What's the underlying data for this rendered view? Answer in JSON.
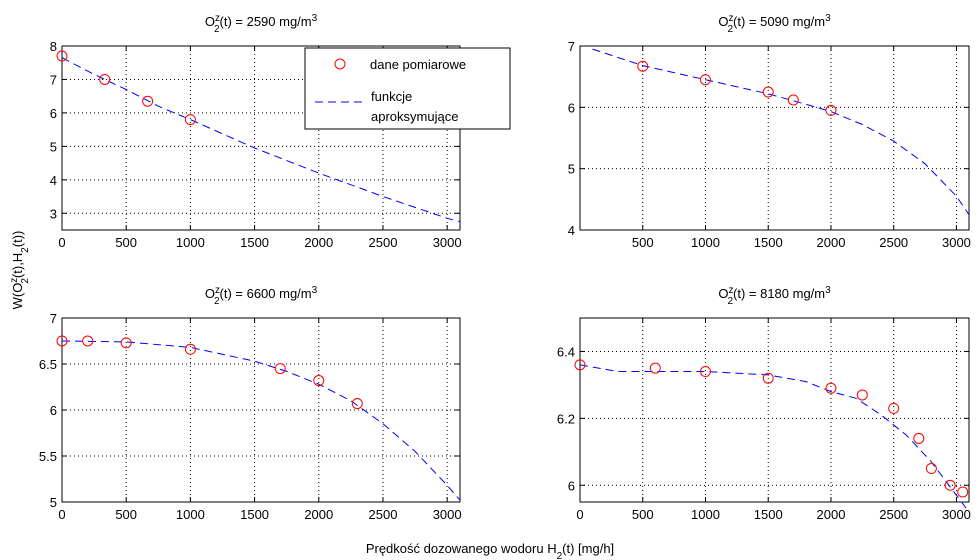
{
  "figure": {
    "ylabel": "W(O2z(t),H2(t))",
    "xlabel": "Prędkość dozowanego wodoru H2(t) [mg/h]"
  },
  "legend": {
    "items": [
      {
        "label": "dane pomiarowe",
        "kind": "marker"
      },
      {
        "label_line1": "funkcje",
        "label_line2": "aproksymujące",
        "kind": "line"
      }
    ]
  },
  "chart_data": [
    {
      "type": "line",
      "title": "O2z(t) = 2590 mg/m3",
      "title_parts": {
        "o2z": "O",
        "sub": "2",
        "sup": "z",
        "rest": "(t) = 2590 mg/m",
        "unit_sup": "3"
      },
      "xlim": [
        0,
        3100
      ],
      "ylim": [
        2.5,
        8
      ],
      "xticks": [
        0,
        500,
        1000,
        1500,
        2000,
        2500,
        3000
      ],
      "yticks": [
        3,
        4,
        5,
        6,
        7,
        8
      ],
      "grid": true,
      "series": [
        {
          "name": "dane pomiarowe",
          "x": [
            0,
            333,
            667,
            1000
          ],
          "y": [
            7.7,
            7.0,
            6.35,
            5.8
          ]
        },
        {
          "name": "funkcje aproksymujące",
          "x": [
            0,
            250,
            500,
            750,
            1000,
            1500,
            2000,
            2500,
            3000,
            3100
          ],
          "y": [
            7.65,
            7.15,
            6.7,
            6.2,
            5.8,
            4.95,
            4.2,
            3.5,
            2.85,
            2.75
          ]
        }
      ]
    },
    {
      "type": "line",
      "title": "O2z(t) = 5090 mg/m3",
      "title_parts": {
        "o2z": "O",
        "sub": "2",
        "sup": "z",
        "rest": "(t) = 5090 mg/m",
        "unit_sup": "3"
      },
      "xlim": [
        0,
        3100
      ],
      "ylim": [
        4,
        7
      ],
      "xticks": [
        500,
        1000,
        1500,
        2000,
        2500,
        3000
      ],
      "yticks": [
        4,
        5,
        6,
        7
      ],
      "grid": true,
      "series": [
        {
          "name": "dane pomiarowe",
          "x": [
            500,
            1000,
            1500,
            1700,
            2000
          ],
          "y": [
            6.67,
            6.45,
            6.25,
            6.12,
            5.95
          ]
        },
        {
          "name": "funkcje aproksymujące",
          "x": [
            100,
            500,
            1000,
            1500,
            1800,
            2000,
            2250,
            2500,
            2750,
            3000,
            3100
          ],
          "y": [
            6.95,
            6.68,
            6.45,
            6.22,
            6.05,
            5.93,
            5.72,
            5.45,
            5.08,
            4.55,
            4.25
          ]
        }
      ]
    },
    {
      "type": "line",
      "title": "O2z(t) = 6600 mg/m3",
      "title_parts": {
        "o2z": "O",
        "sub": "2",
        "sup": "z",
        "rest": "(t) = 6600 mg/m",
        "unit_sup": "3"
      },
      "xlim": [
        0,
        3100
      ],
      "ylim": [
        5,
        7
      ],
      "xticks": [
        0,
        500,
        1000,
        1500,
        2000,
        2500,
        3000
      ],
      "yticks": [
        5,
        5.5,
        6,
        6.5,
        7
      ],
      "grid": true,
      "series": [
        {
          "name": "dane pomiarowe",
          "x": [
            0,
            200,
            500,
            1000,
            1700,
            2000,
            2300
          ],
          "y": [
            6.75,
            6.75,
            6.73,
            6.66,
            6.45,
            6.32,
            6.07
          ]
        },
        {
          "name": "funkcje aproksymujące",
          "x": [
            0,
            500,
            1000,
            1500,
            1750,
            2000,
            2250,
            2500,
            2750,
            3000,
            3100
          ],
          "y": [
            6.75,
            6.74,
            6.68,
            6.53,
            6.42,
            6.28,
            6.1,
            5.85,
            5.55,
            5.18,
            5.02
          ]
        }
      ]
    },
    {
      "type": "line",
      "title": "O2z(t) = 8180 mg/m3",
      "title_parts": {
        "o2z": "O",
        "sub": "2",
        "sup": "z",
        "rest": "(t) = 8180 mg/m",
        "unit_sup": "3"
      },
      "xlim": [
        0,
        3100
      ],
      "ylim": [
        5.95,
        6.5
      ],
      "xticks": [
        0,
        500,
        1000,
        1500,
        2000,
        2500,
        3000
      ],
      "yticks": [
        6,
        6.2,
        6.4
      ],
      "ytick_labels": [
        "6",
        "6.2",
        "6.4"
      ],
      "grid": true,
      "series": [
        {
          "name": "dane pomiarowe",
          "x": [
            0,
            600,
            1000,
            1500,
            2000,
            2250,
            2500,
            2700,
            2800,
            2950,
            3050
          ],
          "y": [
            6.36,
            6.35,
            6.34,
            6.32,
            6.29,
            6.27,
            6.23,
            6.14,
            6.05,
            6.0,
            5.98
          ]
        },
        {
          "name": "funkcje aproksymujące",
          "x": [
            0,
            300,
            600,
            1000,
            1500,
            1800,
            2000,
            2200,
            2400,
            2600,
            2800,
            3000,
            3100
          ],
          "y": [
            6.36,
            6.34,
            6.34,
            6.34,
            6.33,
            6.31,
            6.28,
            6.26,
            6.21,
            6.15,
            6.07,
            5.97,
            5.92
          ]
        }
      ]
    }
  ]
}
